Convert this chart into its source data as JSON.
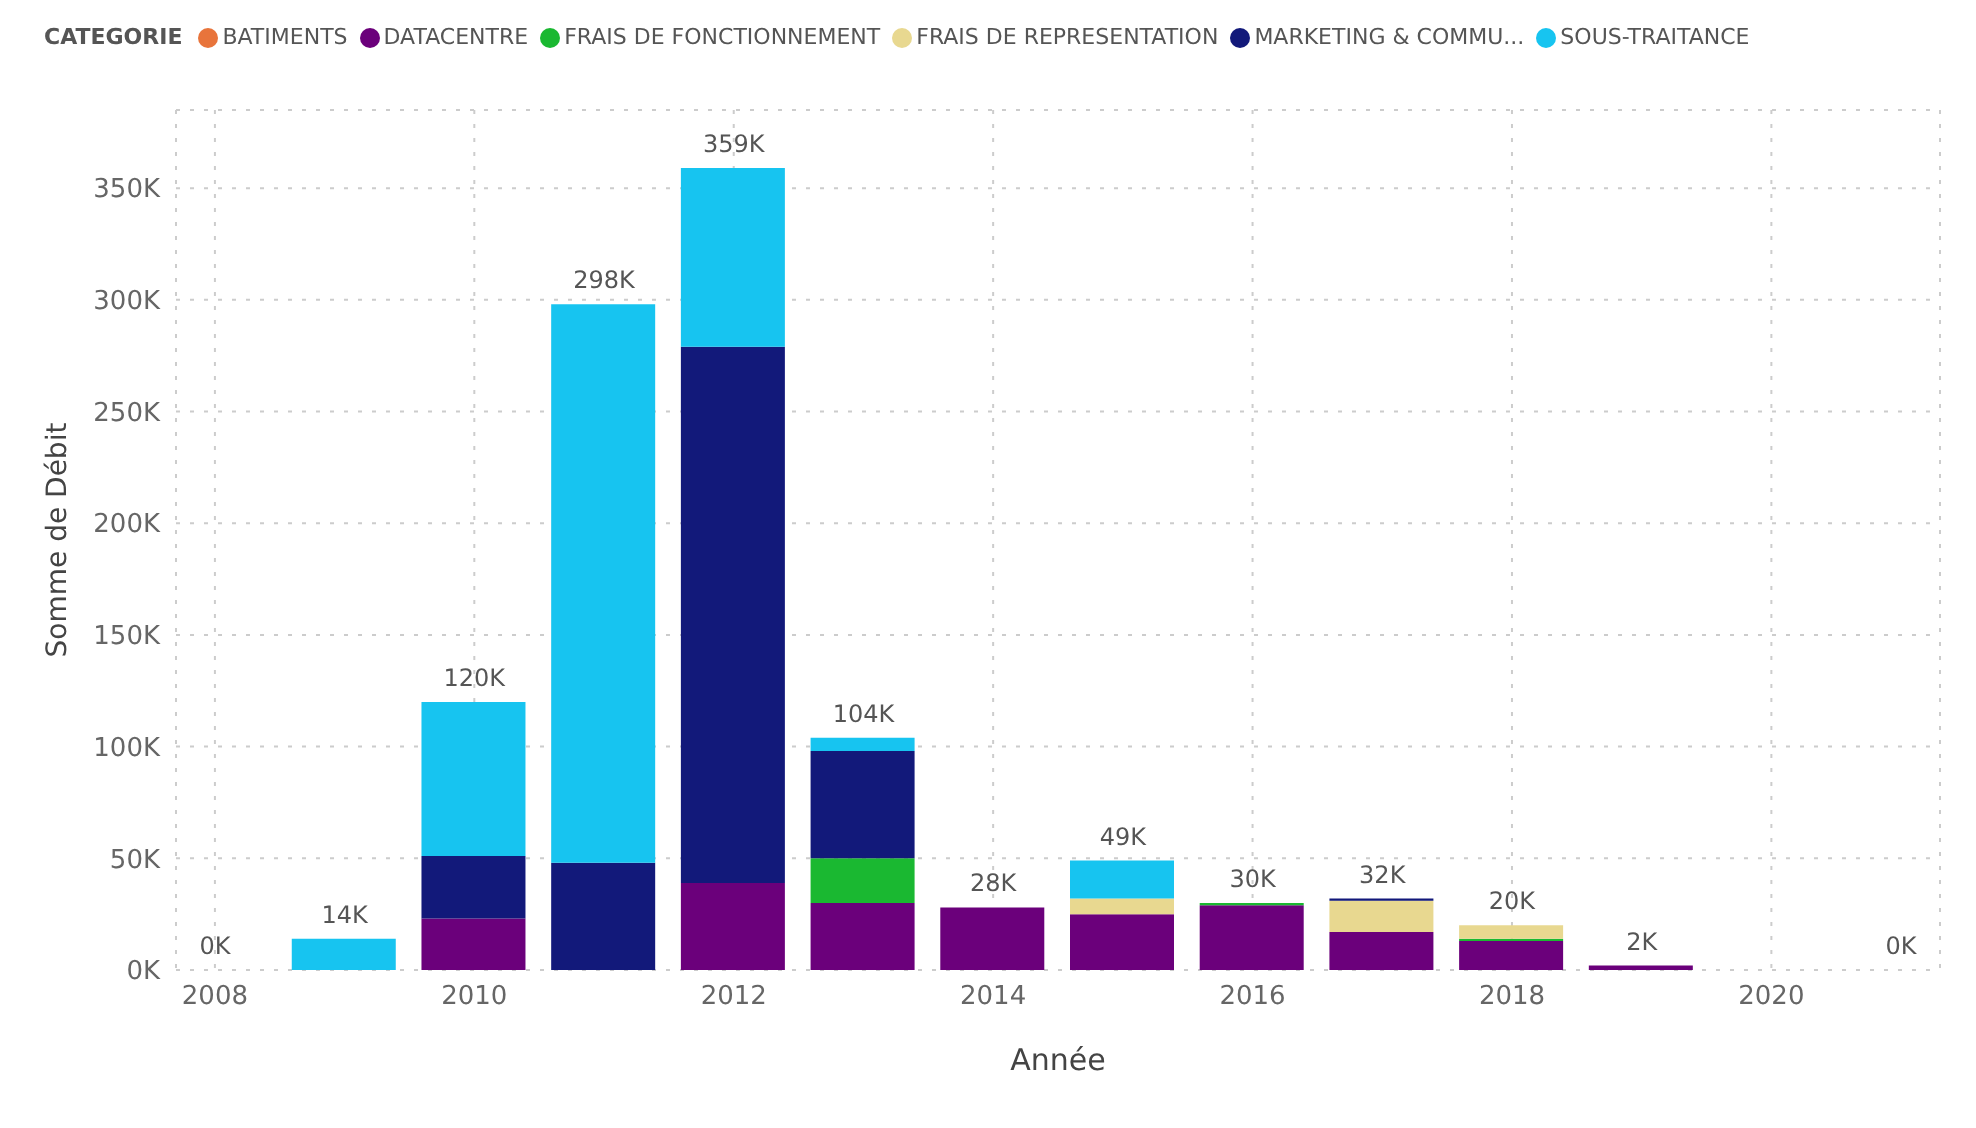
{
  "chart_data": {
    "type": "bar",
    "stacked": true,
    "xlabel": "Année",
    "ylabel": "Somme de Débit",
    "legend_title": "CATEGORIE",
    "legend": "top left",
    "grid": true,
    "x": [
      2008,
      2009,
      2010,
      2011,
      2012,
      2013,
      2014,
      2015,
      2016,
      2017,
      2018,
      2019,
      2021
    ],
    "xlim": [
      2007.7,
      2021.3
    ],
    "xticks": [
      2008,
      2010,
      2012,
      2014,
      2016,
      2018,
      2020
    ],
    "ylim": [
      0,
      385
    ],
    "yticks": [
      {
        "value": 0,
        "label": "0K"
      },
      {
        "value": 50,
        "label": "50K"
      },
      {
        "value": 100,
        "label": "100K"
      },
      {
        "value": 150,
        "label": "150K"
      },
      {
        "value": 200,
        "label": "200K"
      },
      {
        "value": 250,
        "label": "250K"
      },
      {
        "value": 300,
        "label": "300K"
      },
      {
        "value": 350,
        "label": "350K"
      }
    ],
    "totals": [
      "0K",
      "14K",
      "120K",
      "298K",
      "359K",
      "104K",
      "28K",
      "49K",
      "30K",
      "32K",
      "20K",
      "2K",
      "0K"
    ],
    "series": [
      {
        "name": "BATIMENTS",
        "color": "#e8743b",
        "values": [
          null,
          null,
          null,
          null,
          null,
          null,
          null,
          null,
          null,
          null,
          null,
          null,
          null
        ]
      },
      {
        "name": "DATACENTRE",
        "color": "#6b007b",
        "values": [
          0,
          null,
          23,
          null,
          39,
          30,
          28,
          25,
          29,
          17,
          13,
          2,
          0
        ]
      },
      {
        "name": "FRAIS DE FONCTIONNEMENT",
        "color": "#1ab831",
        "values": [
          null,
          null,
          null,
          null,
          null,
          20,
          null,
          null,
          1,
          null,
          1,
          null,
          null
        ]
      },
      {
        "name": "FRAIS DE REPRESENTATION",
        "color": "#e8d890",
        "values": [
          null,
          null,
          null,
          null,
          null,
          null,
          null,
          7,
          null,
          14,
          6,
          null,
          null
        ]
      },
      {
        "name": "MARKETING & COMMU...",
        "color": "#12197a",
        "values": [
          null,
          null,
          28,
          48,
          240,
          48,
          null,
          null,
          null,
          1,
          null,
          null,
          null
        ]
      },
      {
        "name": "SOUS-TRAITANCE",
        "color": "#17c4f0",
        "values": [
          null,
          14,
          69,
          250,
          80,
          6,
          null,
          17,
          null,
          null,
          null,
          null,
          null
        ]
      }
    ]
  }
}
